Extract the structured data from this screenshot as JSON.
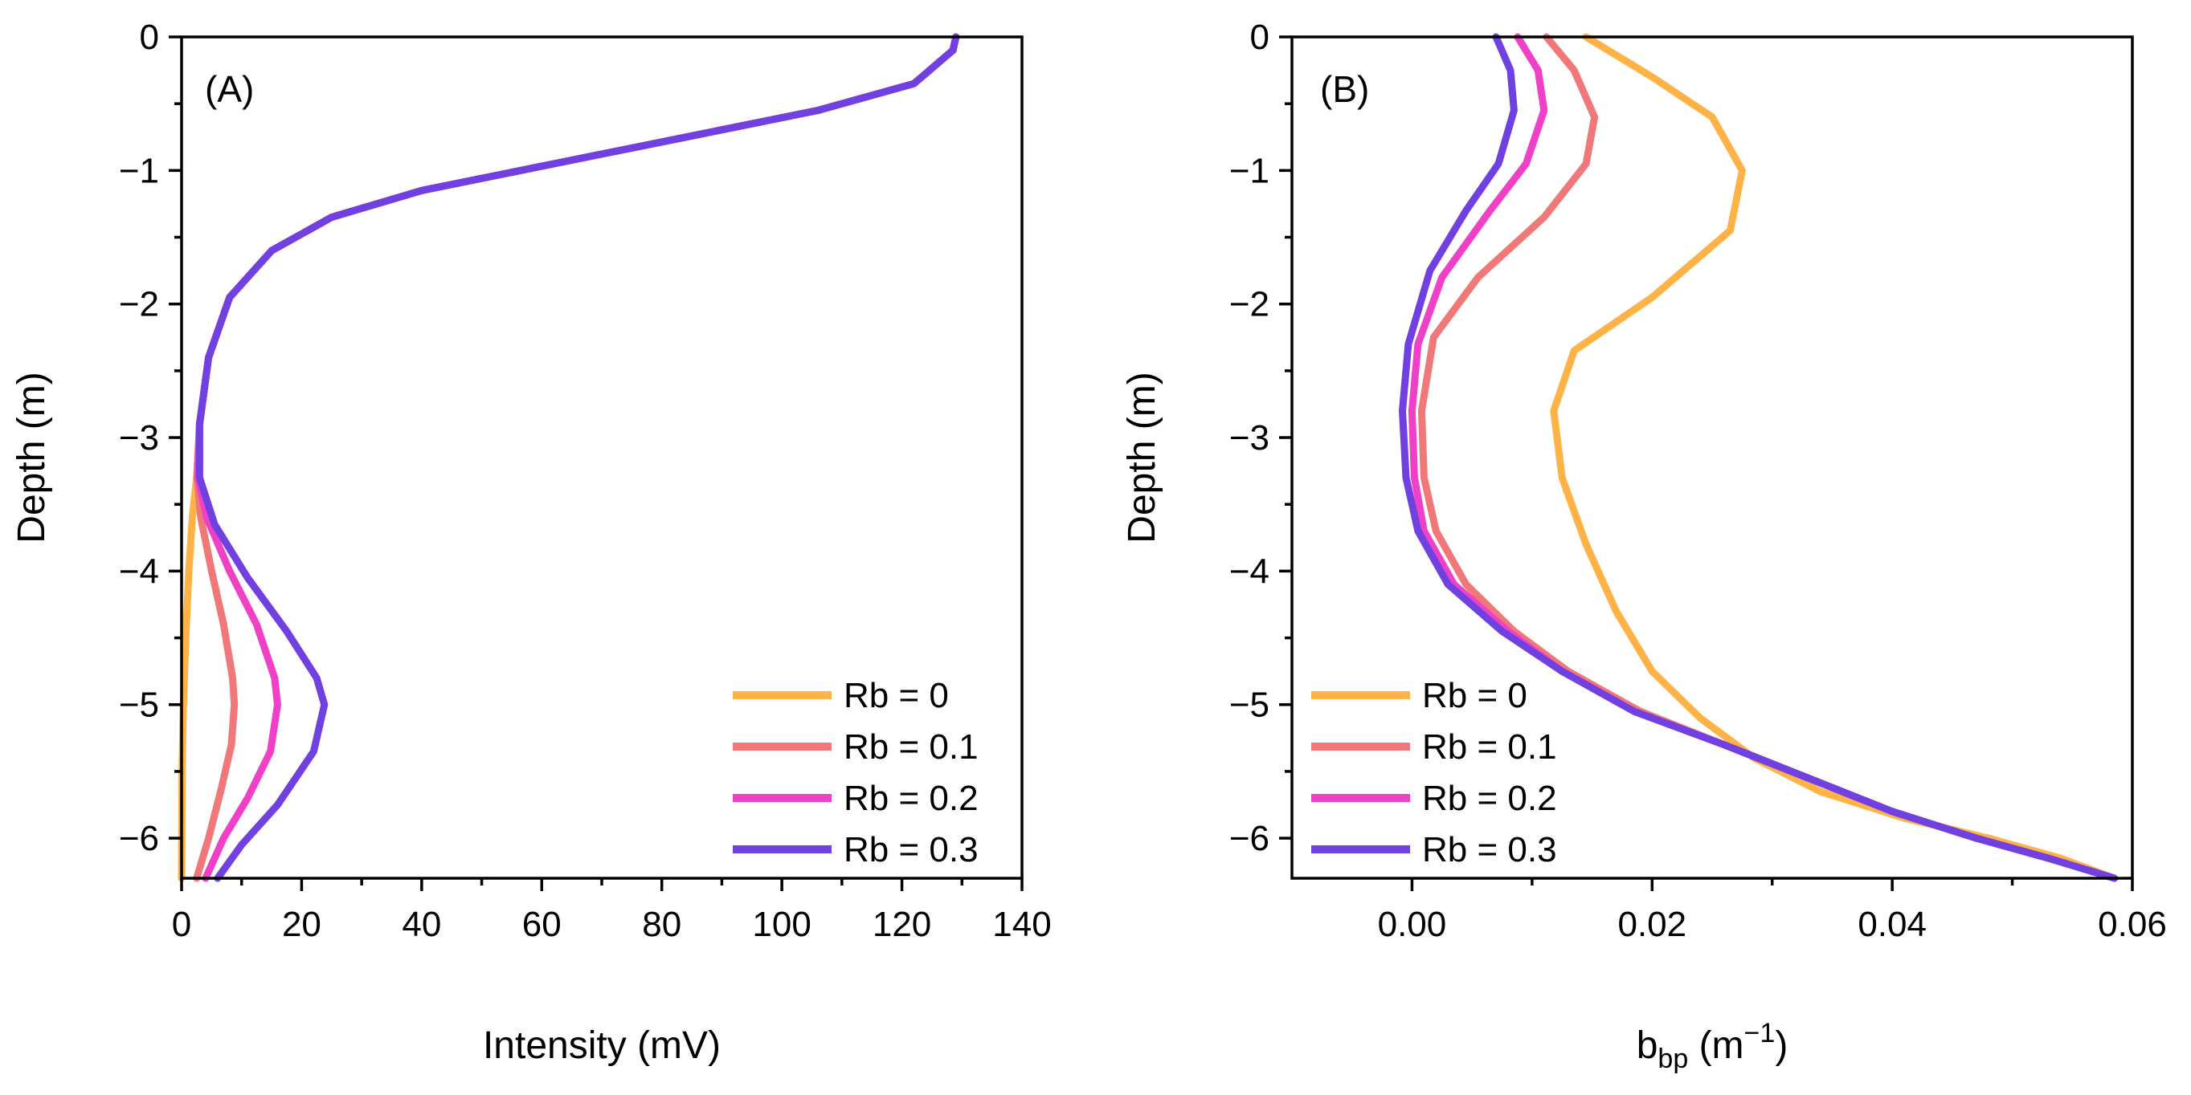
{
  "colors": {
    "rb0": "#FFB347",
    "rb01": "#F07878",
    "rb02": "#F040C8",
    "rb03": "#7040E0"
  },
  "chart_data": [
    {
      "type": "line",
      "panel_label": "(A)",
      "xlabel": "Intensity (mV)",
      "ylabel": "Depth (m)",
      "xlim": [
        0,
        140
      ],
      "ylim": [
        -6.3,
        0
      ],
      "x_ticks": [
        0,
        20,
        40,
        60,
        80,
        100,
        120,
        140
      ],
      "x_tick_labels": [
        "0",
        "20",
        "40",
        "60",
        "80",
        "100",
        "120",
        "140"
      ],
      "y_ticks": [
        0,
        -1,
        -2,
        -3,
        -4,
        -5,
        -6
      ],
      "y_tick_labels": [
        "0",
        "−1",
        "−2",
        "−3",
        "−4",
        "−5",
        "−6"
      ],
      "legend_position": "bottom-right",
      "series": [
        {
          "name": "Rb = 0",
          "points": [
            [
              129,
              0
            ],
            [
              128.5,
              -0.1
            ],
            [
              122,
              -0.35
            ],
            [
              106,
              -0.55
            ],
            [
              84,
              -0.75
            ],
            [
              62,
              -0.95
            ],
            [
              40,
              -1.15
            ],
            [
              25,
              -1.35
            ],
            [
              15,
              -1.6
            ],
            [
              8,
              -1.95
            ],
            [
              4.5,
              -2.4
            ],
            [
              3,
              -2.9
            ],
            [
              2.5,
              -3.3
            ],
            [
              1.8,
              -3.6
            ],
            [
              1.2,
              -4.0
            ],
            [
              0.7,
              -4.5
            ],
            [
              0.3,
              -5.0
            ],
            [
              0.1,
              -5.5
            ],
            [
              0,
              -6.3
            ]
          ]
        },
        {
          "name": "Rb = 0.1",
          "points": [
            [
              129,
              0
            ],
            [
              128.5,
              -0.1
            ],
            [
              122,
              -0.35
            ],
            [
              106,
              -0.55
            ],
            [
              84,
              -0.75
            ],
            [
              62,
              -0.95
            ],
            [
              40,
              -1.15
            ],
            [
              25,
              -1.35
            ],
            [
              15,
              -1.6
            ],
            [
              8,
              -1.95
            ],
            [
              4.5,
              -2.4
            ],
            [
              3,
              -2.9
            ],
            [
              2.6,
              -3.3
            ],
            [
              3.2,
              -3.6
            ],
            [
              5,
              -4.0
            ],
            [
              7,
              -4.4
            ],
            [
              8.5,
              -4.8
            ],
            [
              8.8,
              -5.0
            ],
            [
              8.3,
              -5.3
            ],
            [
              6.5,
              -5.65
            ],
            [
              4.5,
              -6.0
            ],
            [
              2.5,
              -6.3
            ]
          ]
        },
        {
          "name": "Rb = 0.2",
          "points": [
            [
              129,
              0
            ],
            [
              128.5,
              -0.1
            ],
            [
              122,
              -0.35
            ],
            [
              106,
              -0.55
            ],
            [
              84,
              -0.75
            ],
            [
              62,
              -0.95
            ],
            [
              40,
              -1.15
            ],
            [
              25,
              -1.35
            ],
            [
              15,
              -1.6
            ],
            [
              8,
              -1.95
            ],
            [
              4.5,
              -2.4
            ],
            [
              3,
              -2.9
            ],
            [
              2.7,
              -3.3
            ],
            [
              4.2,
              -3.6
            ],
            [
              8,
              -4.0
            ],
            [
              12.5,
              -4.4
            ],
            [
              15.5,
              -4.8
            ],
            [
              16,
              -5.0
            ],
            [
              14.8,
              -5.35
            ],
            [
              11,
              -5.7
            ],
            [
              7,
              -6.0
            ],
            [
              4,
              -6.3
            ]
          ]
        },
        {
          "name": "Rb = 0.3",
          "points": [
            [
              129,
              0
            ],
            [
              128.5,
              -0.1
            ],
            [
              122,
              -0.35
            ],
            [
              106,
              -0.55
            ],
            [
              84,
              -0.75
            ],
            [
              62,
              -0.95
            ],
            [
              40,
              -1.15
            ],
            [
              25,
              -1.35
            ],
            [
              15,
              -1.6
            ],
            [
              8,
              -1.95
            ],
            [
              4.5,
              -2.4
            ],
            [
              3,
              -2.9
            ],
            [
              3,
              -3.3
            ],
            [
              5.5,
              -3.65
            ],
            [
              11,
              -4.05
            ],
            [
              17.5,
              -4.45
            ],
            [
              22.5,
              -4.8
            ],
            [
              23.8,
              -5.0
            ],
            [
              22,
              -5.35
            ],
            [
              16,
              -5.75
            ],
            [
              10,
              -6.05
            ],
            [
              6,
              -6.3
            ]
          ]
        }
      ]
    },
    {
      "type": "line",
      "panel_label": "(B)",
      "xlabel_main": "b",
      "xlabel_sub": "bp",
      "xlabel_unit_open": " (m",
      "xlabel_exp": "−1",
      "xlabel_close": ")",
      "ylabel": "Depth (m)",
      "xlim": [
        -0.01,
        0.06
      ],
      "ylim": [
        -6.3,
        0
      ],
      "x_ticks": [
        0.0,
        0.02,
        0.04,
        0.06
      ],
      "x_tick_labels": [
        "0.00",
        "0.02",
        "0.04",
        "0.06"
      ],
      "y_ticks": [
        0,
        -1,
        -2,
        -3,
        -4,
        -5,
        -6
      ],
      "y_tick_labels": [
        "0",
        "−1",
        "−2",
        "−3",
        "−4",
        "−5",
        "−6"
      ],
      "legend_position": "bottom-left",
      "series": [
        {
          "name": "Rb = 0",
          "points": [
            [
              0.0145,
              0
            ],
            [
              0.02,
              -0.3
            ],
            [
              0.025,
              -0.6
            ],
            [
              0.0275,
              -1.0
            ],
            [
              0.0265,
              -1.45
            ],
            [
              0.02,
              -1.95
            ],
            [
              0.0135,
              -2.35
            ],
            [
              0.0118,
              -2.8
            ],
            [
              0.0125,
              -3.3
            ],
            [
              0.0145,
              -3.8
            ],
            [
              0.017,
              -4.3
            ],
            [
              0.02,
              -4.75
            ],
            [
              0.024,
              -5.1
            ],
            [
              0.0285,
              -5.4
            ],
            [
              0.034,
              -5.65
            ],
            [
              0.041,
              -5.85
            ],
            [
              0.048,
              -6.0
            ],
            [
              0.054,
              -6.15
            ],
            [
              0.0585,
              -6.3
            ]
          ]
        },
        {
          "name": "Rb = 0.1",
          "points": [
            [
              0.0112,
              0
            ],
            [
              0.0135,
              -0.25
            ],
            [
              0.0152,
              -0.6
            ],
            [
              0.0145,
              -0.95
            ],
            [
              0.011,
              -1.35
            ],
            [
              0.0055,
              -1.8
            ],
            [
              0.0018,
              -2.25
            ],
            [
              0.0008,
              -2.8
            ],
            [
              0.001,
              -3.3
            ],
            [
              0.002,
              -3.7
            ],
            [
              0.0045,
              -4.1
            ],
            [
              0.0085,
              -4.45
            ],
            [
              0.013,
              -4.75
            ],
            [
              0.019,
              -5.05
            ],
            [
              0.026,
              -5.3
            ],
            [
              0.033,
              -5.55
            ],
            [
              0.04,
              -5.8
            ],
            [
              0.047,
              -6.0
            ],
            [
              0.053,
              -6.15
            ],
            [
              0.0585,
              -6.3
            ]
          ]
        },
        {
          "name": "Rb = 0.2",
          "points": [
            [
              0.0088,
              0
            ],
            [
              0.0105,
              -0.25
            ],
            [
              0.011,
              -0.55
            ],
            [
              0.0095,
              -0.95
            ],
            [
              0.0065,
              -1.3
            ],
            [
              0.0025,
              -1.8
            ],
            [
              0.0005,
              -2.3
            ],
            [
              0,
              -2.8
            ],
            [
              0.0002,
              -3.3
            ],
            [
              0.001,
              -3.7
            ],
            [
              0.0035,
              -4.1
            ],
            [
              0.008,
              -4.45
            ],
            [
              0.0125,
              -4.75
            ],
            [
              0.0185,
              -5.05
            ],
            [
              0.026,
              -5.3
            ],
            [
              0.033,
              -5.55
            ],
            [
              0.04,
              -5.8
            ],
            [
              0.047,
              -6.0
            ],
            [
              0.053,
              -6.15
            ],
            [
              0.0585,
              -6.3
            ]
          ]
        },
        {
          "name": "Rb = 0.3",
          "points": [
            [
              0.007,
              0
            ],
            [
              0.0082,
              -0.25
            ],
            [
              0.0085,
              -0.55
            ],
            [
              0.0072,
              -0.95
            ],
            [
              0.0045,
              -1.3
            ],
            [
              0.0015,
              -1.75
            ],
            [
              -0.0003,
              -2.3
            ],
            [
              -0.0008,
              -2.8
            ],
            [
              -0.0005,
              -3.3
            ],
            [
              0.0005,
              -3.7
            ],
            [
              0.003,
              -4.1
            ],
            [
              0.0075,
              -4.45
            ],
            [
              0.0125,
              -4.75
            ],
            [
              0.0185,
              -5.05
            ],
            [
              0.026,
              -5.3
            ],
            [
              0.033,
              -5.55
            ],
            [
              0.04,
              -5.8
            ],
            [
              0.047,
              -6.0
            ],
            [
              0.053,
              -6.15
            ],
            [
              0.0585,
              -6.3
            ]
          ]
        }
      ]
    }
  ]
}
